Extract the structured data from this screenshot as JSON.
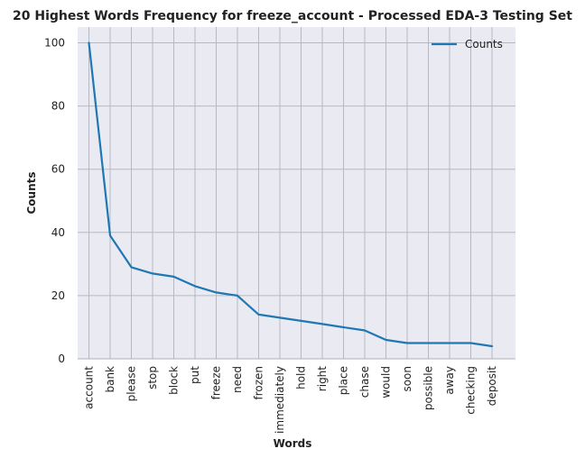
{
  "chart_data": {
    "type": "line",
    "title": "20 Highest Words Frequency for freeze_account - Processed EDA-3 Testing Set",
    "xlabel": "Words",
    "ylabel": "Counts",
    "categories": [
      "account",
      "bank",
      "please",
      "stop",
      "block",
      "put",
      "freeze",
      "need",
      "frozen",
      "immediately",
      "hold",
      "right",
      "place",
      "chase",
      "would",
      "soon",
      "possible",
      "away",
      "checking",
      "deposit"
    ],
    "series": [
      {
        "name": "Counts",
        "values": [
          100,
          39,
          29,
          27,
          26,
          23,
          21,
          20,
          14,
          13,
          12,
          11,
          10,
          9,
          6,
          5,
          5,
          5,
          5,
          4
        ]
      }
    ],
    "ylim": [
      0,
      105
    ],
    "yticks": [
      0,
      20,
      40,
      60,
      80,
      100
    ],
    "grid": true,
    "legend_position": "top-right",
    "line_color": "#1f77b4",
    "background_color": "#eaeaf2",
    "grid_color": "#b8b8c4"
  }
}
